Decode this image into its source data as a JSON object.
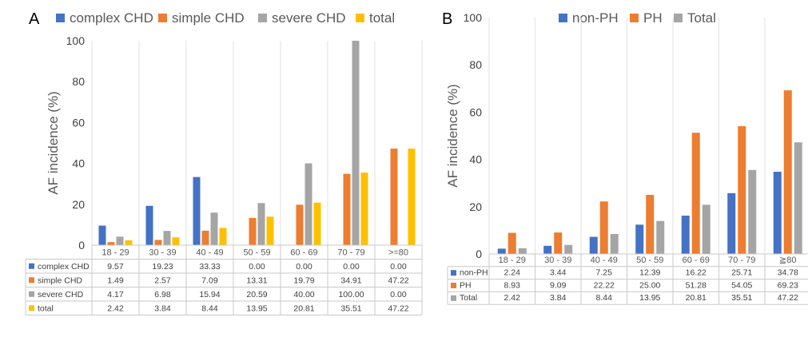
{
  "chart_data": [
    {
      "type": "bar",
      "panel": "A",
      "ylabel": "AF incidence (%)",
      "ylim": [
        0,
        100
      ],
      "yticks": [
        0,
        20,
        40,
        60,
        80,
        100
      ],
      "legend": "top",
      "grid": false,
      "categories": [
        "18 - 29",
        "30 - 39",
        "40 - 49",
        "50 - 59",
        "60 - 69",
        "70 - 79",
        ">=80"
      ],
      "series": [
        {
          "name": "complex CHD",
          "color": "#4472C4",
          "values": [
            9.57,
            19.23,
            33.33,
            0.0,
            0.0,
            0.0,
            0.0
          ],
          "labels": [
            "9.57",
            "19.23",
            "33.33",
            "0.00",
            "0.00",
            "0.00",
            "0.00"
          ]
        },
        {
          "name": "simple CHD",
          "color": "#ED7D31",
          "values": [
            1.49,
            2.57,
            7.09,
            13.31,
            19.79,
            34.91,
            47.22
          ],
          "labels": [
            "1.49",
            "2.57",
            "7.09",
            "13.31",
            "19.79",
            "34.91",
            "47.22"
          ]
        },
        {
          "name": "severe CHD",
          "color": "#A5A5A5",
          "values": [
            4.17,
            6.98,
            15.94,
            20.59,
            40.0,
            100.0,
            0.0
          ],
          "labels": [
            "4.17",
            "6.98",
            "15.94",
            "20.59",
            "40.00",
            "100.00",
            "0.00"
          ]
        },
        {
          "name": "total",
          "color": "#FFC000",
          "values": [
            2.42,
            3.84,
            8.44,
            13.95,
            20.81,
            35.51,
            47.22
          ],
          "labels": [
            "2.42",
            "3.84",
            "8.44",
            "13.95",
            "20.81",
            "35.51",
            "47.22"
          ]
        }
      ]
    },
    {
      "type": "bar",
      "panel": "B",
      "ylabel": "AF incidence (%)",
      "ylim": [
        0,
        100
      ],
      "yticks": [
        0,
        20,
        40,
        60,
        80,
        100
      ],
      "legend": "top",
      "grid": false,
      "categories": [
        "18 - 29",
        "30 - 39",
        "40 - 49",
        "50 - 59",
        "60 - 69",
        "70 - 79",
        "≧80"
      ],
      "series": [
        {
          "name": "non-PH",
          "color": "#4472C4",
          "values": [
            2.24,
            3.44,
            7.25,
            12.39,
            16.22,
            25.71,
            34.78
          ],
          "labels": [
            "2.24",
            "3.44",
            "7.25",
            "12.39",
            "16.22",
            "25.71",
            "34.78"
          ]
        },
        {
          "name": "PH",
          "color": "#ED7D31",
          "values": [
            8.93,
            9.09,
            22.22,
            25.0,
            51.28,
            54.05,
            69.23
          ],
          "labels": [
            "8.93",
            "9.09",
            "22.22",
            "25.00",
            "51.28",
            "54.05",
            "69.23"
          ]
        },
        {
          "name": "Total",
          "color": "#A5A5A5",
          "values": [
            2.42,
            3.84,
            8.44,
            13.95,
            20.81,
            35.51,
            47.22
          ],
          "labels": [
            "2.42",
            "3.84",
            "8.44",
            "13.95",
            "20.81",
            "35.51",
            "47.22"
          ]
        }
      ]
    }
  ]
}
